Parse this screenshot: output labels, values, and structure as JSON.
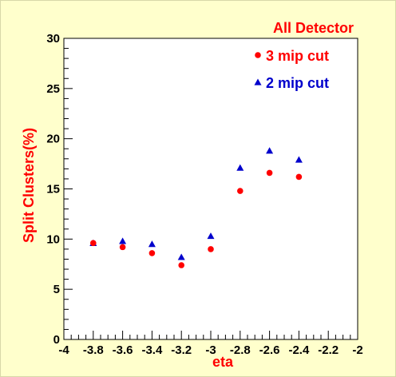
{
  "chart_data": {
    "type": "scatter",
    "title": "All Detector",
    "xlabel": "eta",
    "ylabel": "Split Clusters(%)",
    "xlim": [
      -4,
      -2
    ],
    "ylim": [
      0,
      30
    ],
    "x_ticks": [
      "-4",
      "-3.8",
      "-3.6",
      "-3.4",
      "-3.2",
      "-3",
      "-2.8",
      "-2.6",
      "-2.4",
      "-2.2",
      "-2"
    ],
    "y_ticks": [
      "0",
      "5",
      "10",
      "15",
      "20",
      "25",
      "30"
    ],
    "grid": false,
    "legend_position": "top-right",
    "series": [
      {
        "name": "3 mip cut",
        "marker": "circle",
        "color": "#ff0000",
        "x": [
          -3.8,
          -3.6,
          -3.4,
          -3.2,
          -3.0,
          -2.8,
          -2.6,
          -2.4
        ],
        "y": [
          9.6,
          9.2,
          8.6,
          7.4,
          9.0,
          14.8,
          16.6,
          16.2
        ]
      },
      {
        "name": "2 mip cut",
        "marker": "triangle",
        "color": "#0000cc",
        "x": [
          -3.8,
          -3.6,
          -3.4,
          -3.2,
          -3.0,
          -2.8,
          -2.6,
          -2.4
        ],
        "y": [
          9.6,
          9.8,
          9.5,
          8.2,
          10.3,
          17.1,
          18.8,
          17.9
        ]
      }
    ],
    "colors": {
      "background": "#ffffcc",
      "plot_area": "#ffffff",
      "title": "#ff0000",
      "axis_title": "#ff0000"
    }
  }
}
